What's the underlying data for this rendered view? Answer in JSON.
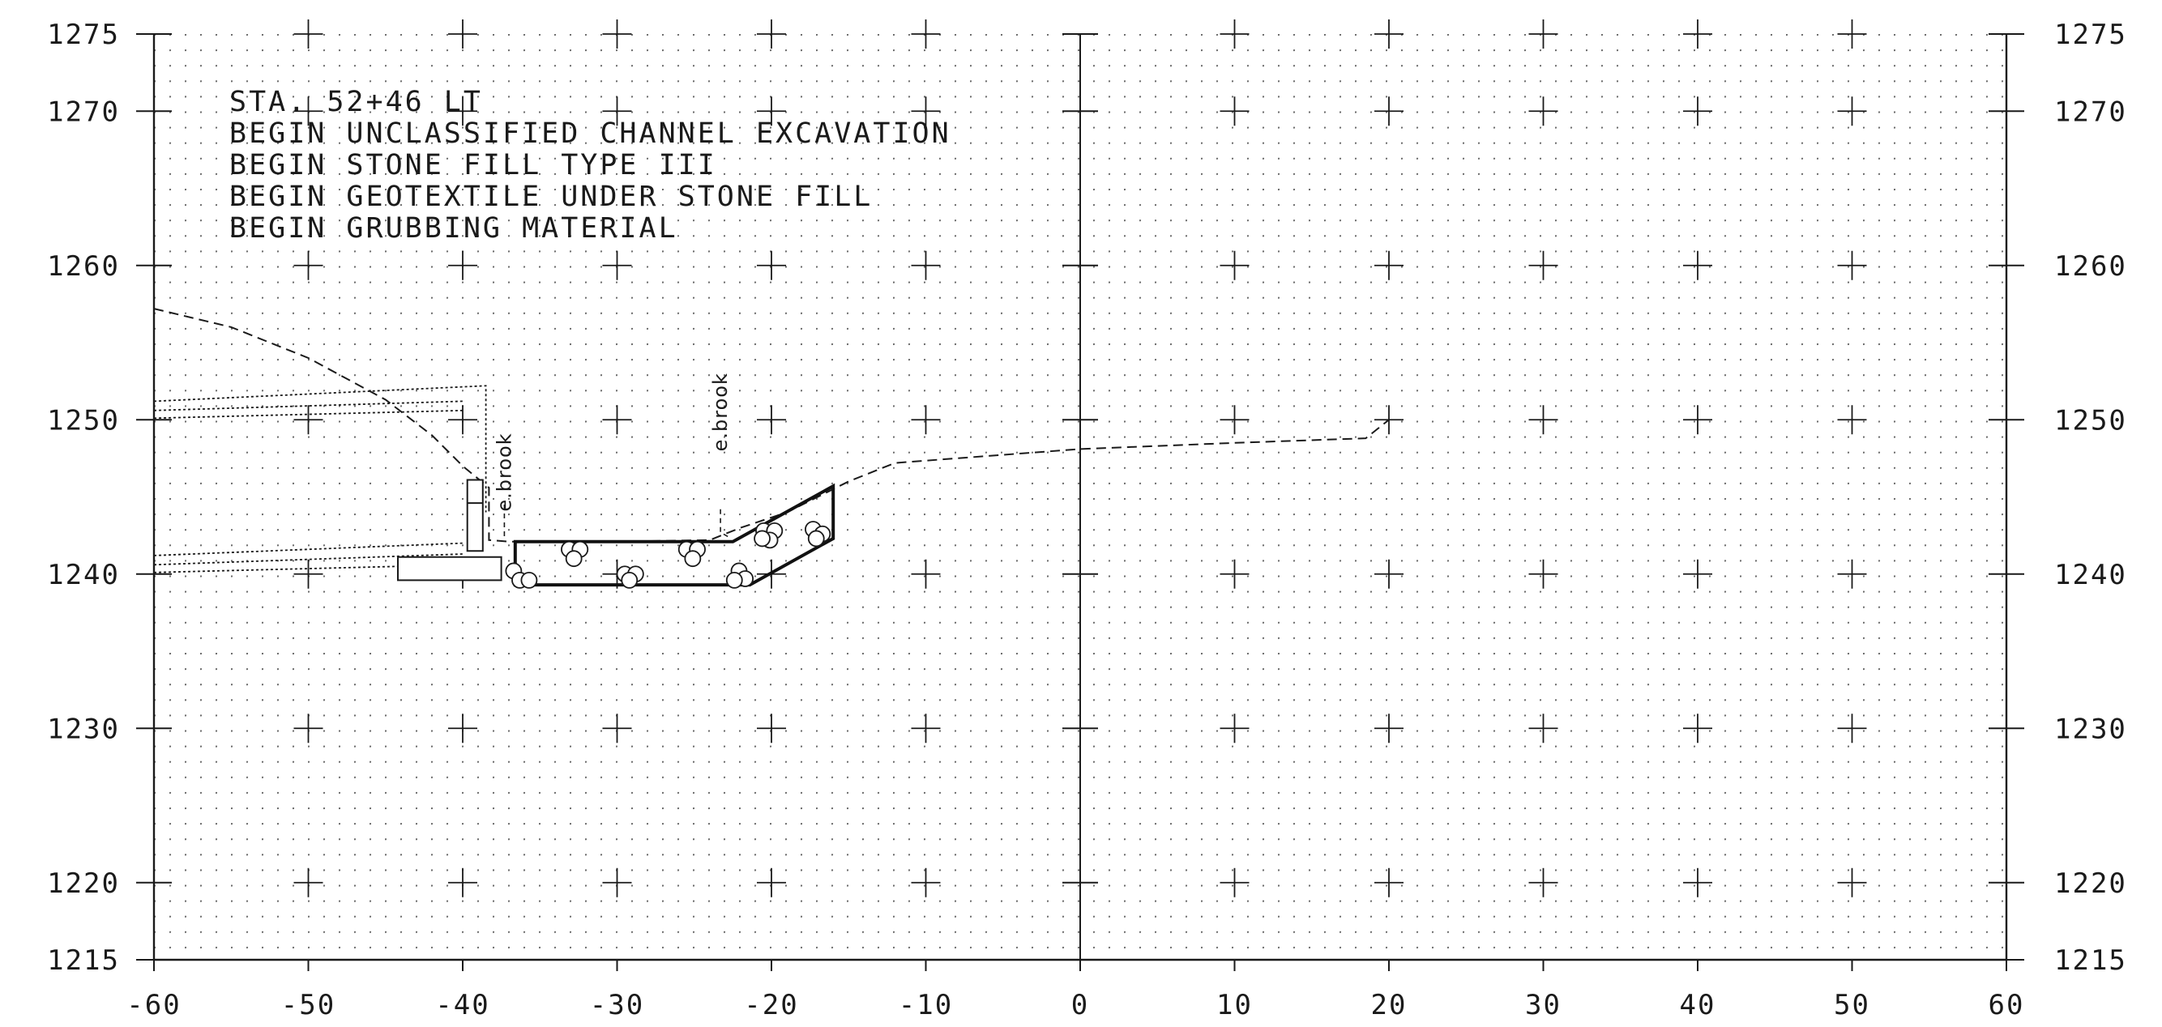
{
  "chart_data": {
    "type": "cross-section",
    "x_range": [
      -60,
      60
    ],
    "y_range": [
      1215,
      1275
    ],
    "x_ticks": [
      "-60",
      "-50",
      "-40",
      "-30",
      "-20",
      "-10",
      "0",
      "10",
      "20",
      "30",
      "40",
      "50",
      "60"
    ],
    "y_ticks": [
      "1275",
      "1270",
      "1260",
      "1250",
      "1240",
      "1230",
      "1220",
      "1215"
    ],
    "notes": [
      "STA. 52+46 LT",
      "BEGIN UNCLASSIFIED CHANNEL EXCAVATION",
      "BEGIN STONE FILL TYPE III",
      "BEGIN GEOTEXTILE UNDER STONE FILL",
      "BEGIN GRUBBING MATERIAL"
    ],
    "brook_labels": [
      {
        "text": "e.brook",
        "x": -37.3,
        "y": 1246.6
      },
      {
        "text": "e.brook",
        "x": -23.3,
        "y": 1250.5
      }
    ],
    "existing_ground": [
      [
        -60,
        1257.2
      ],
      [
        -55,
        1256.0
      ],
      [
        -50,
        1254.0
      ],
      [
        -45,
        1251.3
      ],
      [
        -42,
        1249.0
      ],
      [
        -40,
        1247.0
      ],
      [
        -38.3,
        1245.6
      ],
      [
        -38.3,
        1242.2
      ],
      [
        -37,
        1242.1
      ],
      [
        -30,
        1242.1
      ],
      [
        -24,
        1242.2
      ],
      [
        -22,
        1243.0
      ],
      [
        -19,
        1244.0
      ],
      [
        -15,
        1246.0
      ],
      [
        -12,
        1247.2
      ],
      [
        0,
        1248.1
      ],
      [
        10,
        1248.5
      ],
      [
        18.5,
        1248.8
      ],
      [
        20,
        1250.0
      ]
    ],
    "proposed_channel": [
      [
        -36.6,
        1242.1
      ],
      [
        -22.5,
        1242.1
      ],
      [
        -16,
        1245.7
      ],
      [
        -16,
        1242.3
      ],
      [
        -21.4,
        1239.3
      ],
      [
        -36.6,
        1239.3
      ]
    ],
    "wall_stem": [
      [
        -39.7,
        1241.5
      ],
      [
        -38.7,
        1241.5
      ],
      [
        -38.7,
        1246.1
      ],
      [
        -39.7,
        1246.1
      ]
    ],
    "wall_footing": [
      [
        -44.2,
        1239.6
      ],
      [
        -37.5,
        1239.6
      ],
      [
        -37.5,
        1241.1
      ],
      [
        -44.2,
        1241.1
      ]
    ],
    "wall_step": [
      [
        -39.7,
        1244.6
      ],
      [
        -38.7,
        1244.6
      ]
    ],
    "upper_dotted_lines": [
      [
        [
          -60,
          1251.2
        ],
        [
          -38.5,
          1252.2
        ],
        [
          -38.5,
          1244.0
        ]
      ],
      [
        [
          -60,
          1250.6
        ],
        [
          -40.0,
          1251.2
        ]
      ],
      [
        [
          -60,
          1250.1
        ],
        [
          -40.0,
          1250.6
        ]
      ]
    ],
    "lower_dotted_lines": [
      [
        [
          -60,
          1241.2
        ],
        [
          -40.0,
          1242.0
        ]
      ],
      [
        [
          -60,
          1240.6
        ],
        [
          -40.0,
          1241.3
        ]
      ],
      [
        [
          -60,
          1240.1
        ],
        [
          -40.0,
          1240.6
        ]
      ]
    ],
    "brook_leaders": [
      [
        [
          -37.3,
          1244.5
        ],
        [
          -37.3,
          1242.4
        ]
      ],
      [
        [
          -23.3,
          1244.2
        ],
        [
          -23.3,
          1242.7
        ],
        [
          -22.6,
          1242.3
        ]
      ]
    ],
    "stones": [
      [
        -36.7,
        1240.2
      ],
      [
        -36.3,
        1239.6
      ],
      [
        -35.7,
        1239.6
      ],
      [
        -33.1,
        1241.6
      ],
      [
        -32.4,
        1241.6
      ],
      [
        -32.8,
        1241.0
      ],
      [
        -29.5,
        1240.0
      ],
      [
        -28.8,
        1240.0
      ],
      [
        -29.2,
        1239.6
      ],
      [
        -25.5,
        1241.6
      ],
      [
        -24.8,
        1241.6
      ],
      [
        -25.1,
        1241.0
      ],
      [
        -22.1,
        1240.2
      ],
      [
        -21.7,
        1239.7
      ],
      [
        -22.4,
        1239.6
      ],
      [
        -20.5,
        1242.8
      ],
      [
        -19.8,
        1242.8
      ],
      [
        -20.1,
        1242.2
      ],
      [
        -20.6,
        1242.3
      ],
      [
        -17.3,
        1242.9
      ],
      [
        -16.7,
        1242.6
      ],
      [
        -17.1,
        1242.3
      ]
    ]
  }
}
